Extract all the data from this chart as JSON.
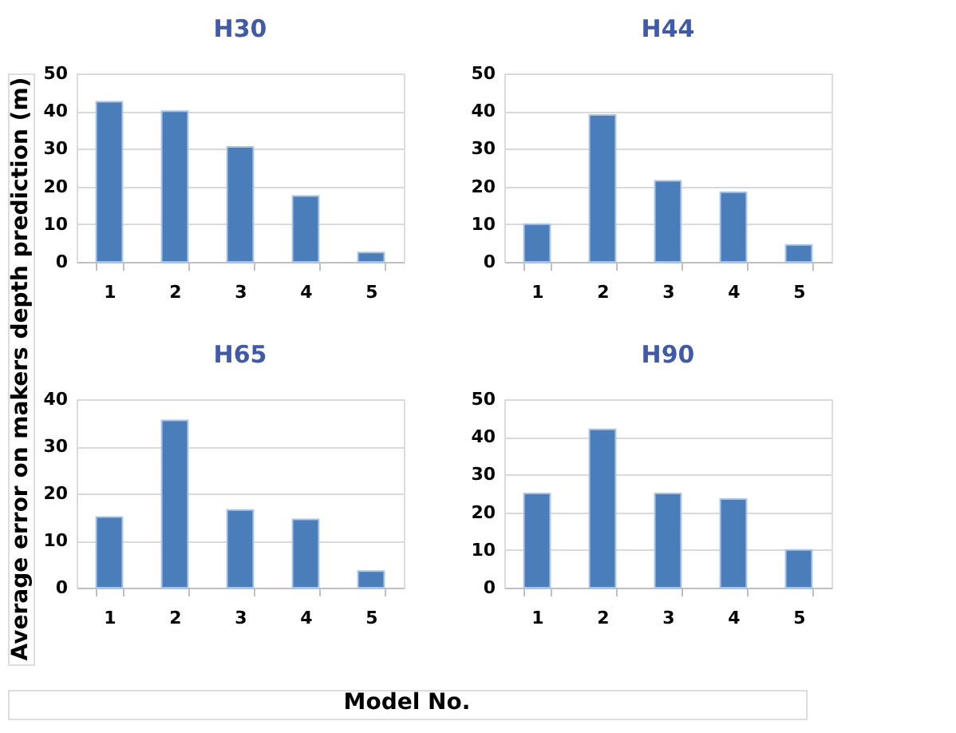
{
  "chart_data": [
    {
      "type": "bar",
      "title": "H30",
      "ylabel": "Average error on makers depth prediction (m)",
      "categories": [
        "1",
        "2",
        "3",
        "4",
        "5"
      ],
      "series": [
        {
          "color": "#4a7ebb",
          "values": [
            42.5,
            40,
            30.5,
            17.5,
            2.5
          ]
        }
      ],
      "ylim": [
        0,
        50
      ],
      "yticks": [
        0,
        10,
        20,
        30,
        40,
        50
      ],
      "grid": "y",
      "legend": false
    },
    {
      "type": "bar",
      "title": "H44",
      "categories": [
        "1",
        "2",
        "3",
        "4",
        "5"
      ],
      "series": [
        {
          "color": "#4a7ebb",
          "values": [
            10,
            39,
            21.5,
            18.5,
            4.5
          ]
        }
      ],
      "ylim": [
        0,
        50
      ],
      "yticks": [
        0,
        10,
        20,
        30,
        40,
        50
      ],
      "grid": "y",
      "legend": false
    },
    {
      "type": "bar",
      "title": "H65",
      "categories": [
        "1",
        "2",
        "3",
        "4",
        "5"
      ],
      "series": [
        {
          "color": "#4a7ebb",
          "values": [
            15,
            35.5,
            16.5,
            14.5,
            3.5
          ]
        }
      ],
      "ylim": [
        0,
        40
      ],
      "yticks": [
        0,
        10,
        20,
        30,
        40
      ],
      "grid": "y",
      "legend": false
    },
    {
      "type": "bar",
      "title": "H90",
      "xlabel": "Model No.",
      "categories": [
        "1",
        "2",
        "3",
        "4",
        "5"
      ],
      "series": [
        {
          "color": "#4a7ebb",
          "values": [
            25,
            42,
            25,
            23.5,
            10
          ]
        }
      ],
      "ylim": [
        0,
        50
      ],
      "yticks": [
        0,
        10,
        20,
        30,
        40,
        50
      ],
      "grid": "y",
      "legend": false
    }
  ]
}
